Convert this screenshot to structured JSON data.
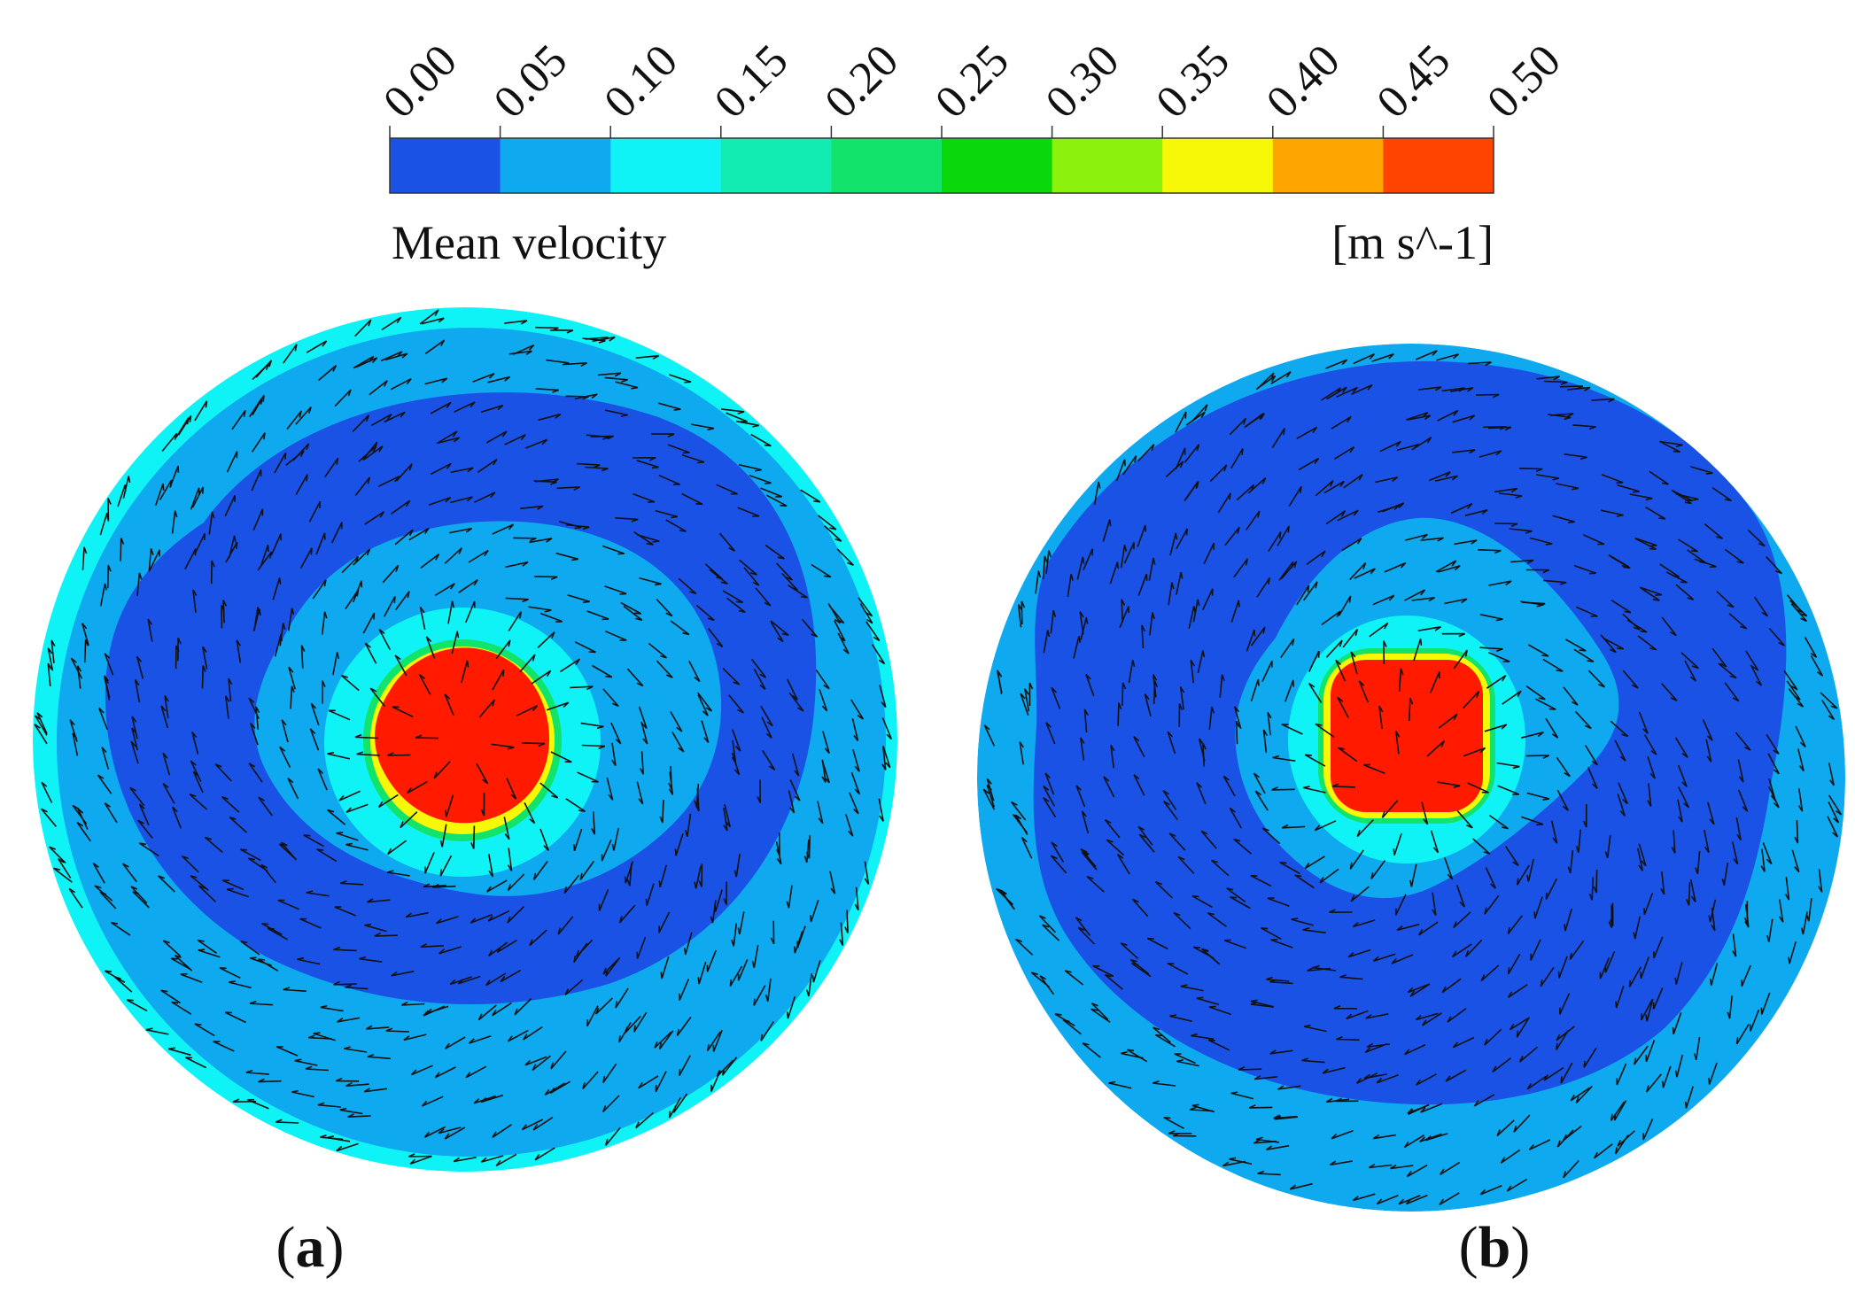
{
  "colorbar": {
    "tick_labels": [
      "0.00",
      "0.05",
      "0.10",
      "0.15",
      "0.20",
      "0.25",
      "0.30",
      "0.35",
      "0.40",
      "0.45",
      "0.50"
    ],
    "colors": [
      "#1a52e6",
      "#0ea9ee",
      "#0ff3f7",
      "#12ecb3",
      "#12e36a",
      "#0ad80a",
      "#8df10e",
      "#f6f808",
      "#ffa500",
      "#ff4300"
    ],
    "title": "Mean velocity",
    "unit": "[m s^-1]"
  },
  "panels": [
    {
      "id": "a",
      "label": "a",
      "open_paren": "(",
      "close_paren": ")"
    },
    {
      "id": "b",
      "label": "b",
      "open_paren": "(",
      "close_paren": ")"
    }
  ],
  "field_colors": {
    "outer_rim": "#0ff3f7",
    "outer_ring": "#0ea9ee",
    "slow_band": "#1a52e6",
    "inner": "#0ea9ee",
    "core_halo": "#0ff3f7",
    "core_edge_green": "#12e36a",
    "core_edge_yellow": "#f6f808",
    "core": "#ff1a00"
  }
}
